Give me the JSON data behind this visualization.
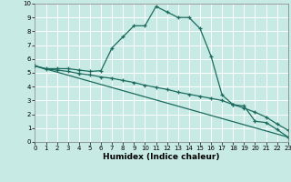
{
  "xlabel": "Humidex (Indice chaleur)",
  "xlim": [
    0,
    23
  ],
  "ylim": [
    0,
    10
  ],
  "xticks": [
    0,
    1,
    2,
    3,
    4,
    5,
    6,
    7,
    8,
    9,
    10,
    11,
    12,
    13,
    14,
    15,
    16,
    17,
    18,
    19,
    20,
    21,
    22,
    23
  ],
  "yticks": [
    0,
    1,
    2,
    3,
    4,
    5,
    6,
    7,
    8,
    9,
    10
  ],
  "bg_color": "#c8eae4",
  "grid_color": "#ffffff",
  "line_color": "#1a6b5e",
  "line1_x": [
    0,
    1,
    2,
    3,
    4,
    5,
    6,
    7,
    8,
    9,
    10,
    11,
    12,
    13,
    14,
    15,
    16,
    17,
    18,
    19,
    20,
    21,
    22,
    23
  ],
  "line1_y": [
    5.5,
    5.3,
    5.3,
    5.3,
    5.2,
    5.1,
    5.15,
    6.8,
    7.6,
    8.4,
    8.4,
    9.8,
    9.4,
    9.0,
    9.0,
    8.2,
    6.2,
    3.4,
    2.7,
    2.6,
    1.5,
    1.4,
    0.9,
    0.35
  ],
  "line2_x": [
    0,
    1,
    2,
    3,
    4,
    5,
    6,
    7,
    8,
    9,
    10,
    11,
    12,
    13,
    14,
    15,
    16,
    17,
    18,
    19,
    20,
    21,
    22,
    23
  ],
  "line2_y": [
    5.5,
    5.25,
    5.2,
    5.1,
    4.95,
    4.85,
    4.7,
    4.6,
    4.45,
    4.3,
    4.1,
    3.95,
    3.8,
    3.6,
    3.45,
    3.3,
    3.15,
    3.0,
    2.7,
    2.45,
    2.15,
    1.8,
    1.3,
    0.85
  ],
  "line3_x": [
    0,
    23
  ],
  "line3_y": [
    5.5,
    0.35
  ],
  "figsize": [
    3.2,
    2.0
  ],
  "dpi": 100,
  "font_size_ticks": 5.0,
  "font_size_xlabel": 6.5
}
